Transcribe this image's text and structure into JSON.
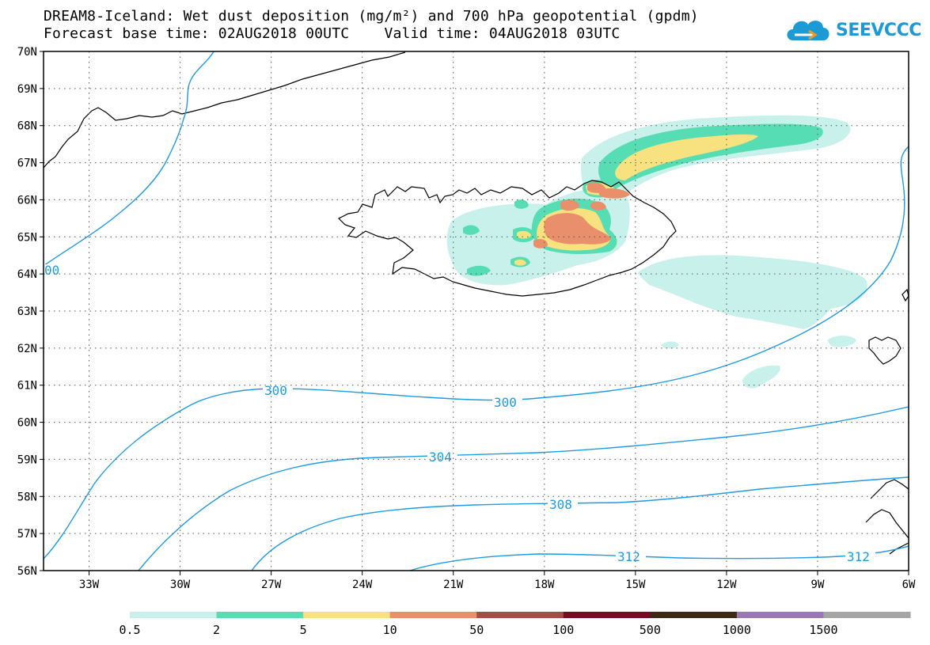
{
  "title": {
    "line1": "DREAM8-Iceland: Wet dust deposition (mg/m²) and 700 hPa geopotential (gpdm)",
    "line2": "Forecast base time: 02AUG2018 00UTC    Valid time: 04AUG2018 03UTC"
  },
  "logo": {
    "text": "SEEVCCC",
    "icon": "cloud-icon",
    "color": "#1c9ad6"
  },
  "map": {
    "lon_range": [
      -34.5,
      -6
    ],
    "lat_range": [
      56,
      70
    ],
    "lon_ticks": [
      "33W",
      "30W",
      "27W",
      "24W",
      "21W",
      "18W",
      "15W",
      "12W",
      "9W",
      "6W"
    ],
    "lat_ticks": [
      "70N",
      "69N",
      "68N",
      "67N",
      "66N",
      "65N",
      "64N",
      "63N",
      "62N",
      "61N",
      "60N",
      "59N",
      "58N",
      "57N",
      "56N"
    ],
    "grid": "dotted",
    "contour_color": "#1e9be3",
    "contour_labels": [
      {
        "text": "00"
      },
      {
        "text": "300"
      },
      {
        "text": "300"
      },
      {
        "text": "304"
      },
      {
        "text": "308"
      },
      {
        "text": "312"
      },
      {
        "text": "312"
      }
    ]
  },
  "colorbar": {
    "colors": [
      "#c7f1ea",
      "#57ddb3",
      "#f7e27f",
      "#ea8f6b",
      "#a24e45",
      "#7a0a22",
      "#3f2a16",
      "#9a78b3",
      "#a5a5a5"
    ],
    "labels": [
      "0.5",
      "2",
      "5",
      "10",
      "50",
      "100",
      "500",
      "1000",
      "1500"
    ]
  }
}
